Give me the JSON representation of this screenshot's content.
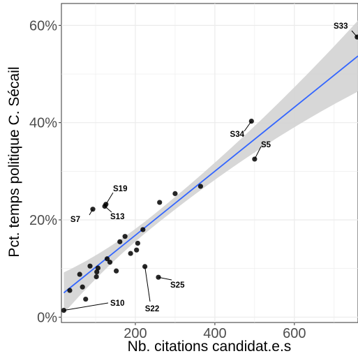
{
  "chart_data": {
    "type": "scatter",
    "xlabel": "Nb. citations candidat.e.s",
    "ylabel": "Pct. temps politique C. Sécail",
    "xlim": [
      14,
      760
    ],
    "ylim": [
      -0.011,
      0.645
    ],
    "x_ticks": [
      200,
      400,
      600
    ],
    "x_tick_labels": [
      "200",
      "400",
      "600"
    ],
    "y_ticks": [
      0,
      0.2,
      0.4,
      0.6
    ],
    "y_tick_labels": [
      "0%",
      "20%",
      "40%",
      "60%"
    ],
    "grid": true,
    "colors": {
      "points": "#000000",
      "fit_line": "#3366ff",
      "band": "#d3d3d3",
      "grid": "#ebebeb"
    },
    "fit": {
      "x": [
        20,
        760
      ],
      "y": [
        0.05,
        0.537
      ],
      "ci_low": [
        0.02,
        0.46
      ],
      "ci_high": [
        0.092,
        0.61
      ]
    },
    "points": [
      {
        "x": 20,
        "y": 0.014,
        "label": "S10"
      },
      {
        "x": 35,
        "y": 0.055
      },
      {
        "x": 60,
        "y": 0.088
      },
      {
        "x": 67,
        "y": 0.062
      },
      {
        "x": 75,
        "y": 0.037
      },
      {
        "x": 86,
        "y": 0.105
      },
      {
        "x": 93,
        "y": 0.222,
        "label": "S7"
      },
      {
        "x": 102,
        "y": 0.083
      },
      {
        "x": 103,
        "y": 0.093
      },
      {
        "x": 106,
        "y": 0.101
      },
      {
        "x": 123,
        "y": 0.228,
        "label": "S13"
      },
      {
        "x": 126,
        "y": 0.232,
        "label": "S19"
      },
      {
        "x": 129,
        "y": 0.12
      },
      {
        "x": 136,
        "y": 0.113
      },
      {
        "x": 152,
        "y": 0.095
      },
      {
        "x": 161,
        "y": 0.155
      },
      {
        "x": 174,
        "y": 0.166
      },
      {
        "x": 188,
        "y": 0.131
      },
      {
        "x": 203,
        "y": 0.138
      },
      {
        "x": 206,
        "y": 0.152
      },
      {
        "x": 219,
        "y": 0.18
      },
      {
        "x": 224,
        "y": 0.104,
        "label": "S22"
      },
      {
        "x": 258,
        "y": 0.082,
        "label": "S25"
      },
      {
        "x": 261,
        "y": 0.236
      },
      {
        "x": 300,
        "y": 0.254
      },
      {
        "x": 364,
        "y": 0.269
      },
      {
        "x": 492,
        "y": 0.403,
        "label": "S34"
      },
      {
        "x": 500,
        "y": 0.325,
        "label": "S5"
      },
      {
        "x": 758,
        "y": 0.576,
        "label": "S33"
      }
    ]
  }
}
